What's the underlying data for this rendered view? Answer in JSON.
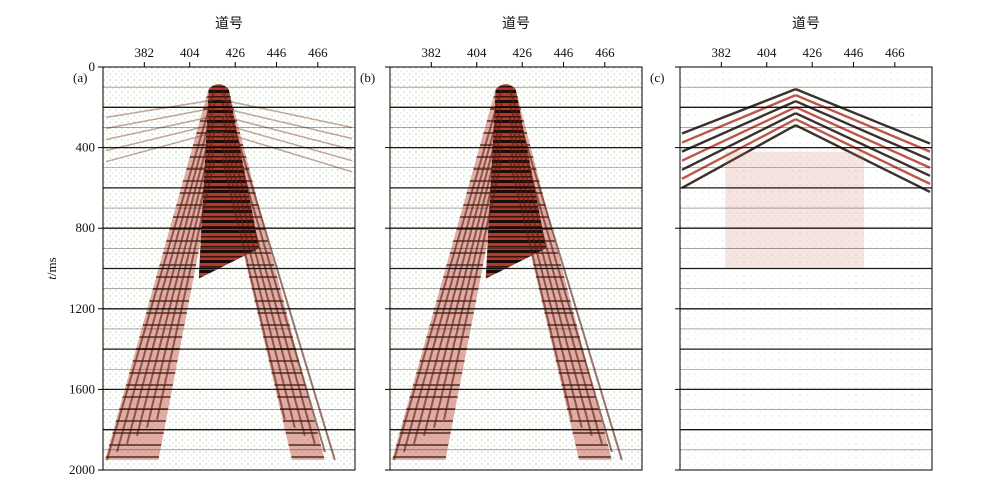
{
  "figure": {
    "y_axis": {
      "label_italic": "t",
      "label_rest": "/ms",
      "ticks": [
        "0",
        "400",
        "800",
        "1200",
        "1600",
        "2000"
      ],
      "tick_values": [
        0,
        400,
        800,
        1200,
        1600,
        2000
      ],
      "range": [
        0,
        2000
      ]
    },
    "x_axis": {
      "title": "道号",
      "ticks": [
        "382",
        "404",
        "426",
        "446",
        "466"
      ],
      "tick_values": [
        382,
        404,
        426,
        446,
        466
      ],
      "range": [
        362,
        484
      ]
    },
    "panels": [
      {
        "label": "(a)",
        "content": "raw shot gather with linear noise"
      },
      {
        "label": "(b)",
        "content": "denoised shot gather"
      },
      {
        "label": "(c)",
        "content": "removed noise"
      }
    ]
  }
}
